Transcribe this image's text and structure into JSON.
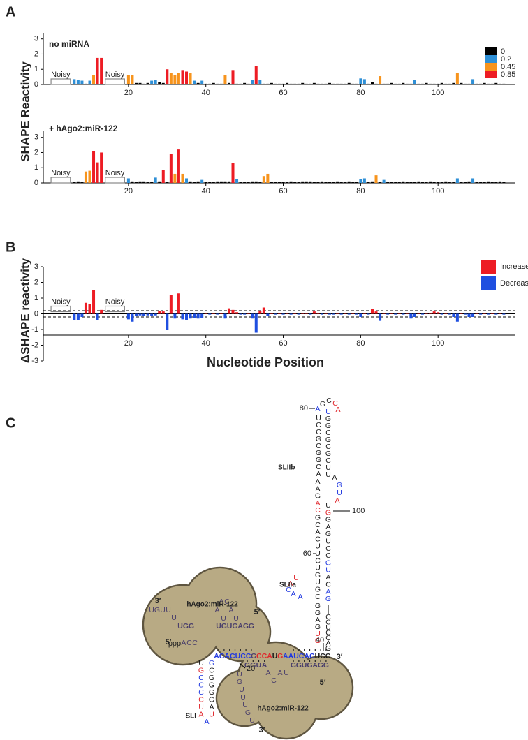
{
  "panel_labels": [
    "A",
    "B",
    "C"
  ],
  "chart_data": [
    {
      "type": "bar",
      "title": "no miRNA",
      "ylabel": "SHAPE Reactivity",
      "xlim": [
        -2,
        120
      ],
      "ylim": [
        0,
        3.4
      ],
      "xticks": [
        20,
        40,
        60,
        80,
        100
      ],
      "yticks": [
        0,
        1,
        2,
        3
      ],
      "x": [
        6,
        7,
        8,
        9,
        10,
        11,
        12,
        13,
        20,
        21,
        22,
        23,
        24,
        25,
        26,
        27,
        28,
        29,
        30,
        31,
        32,
        33,
        34,
        35,
        36,
        37,
        38,
        39,
        40,
        41,
        42,
        43,
        44,
        45,
        46,
        47,
        48,
        49,
        50,
        51,
        52,
        53,
        54,
        55,
        56,
        57,
        58,
        59,
        60,
        61,
        62,
        63,
        64,
        65,
        66,
        67,
        68,
        69,
        70,
        71,
        72,
        73,
        74,
        75,
        76,
        77,
        78,
        79,
        80,
        81,
        82,
        83,
        84,
        85,
        86,
        87,
        88,
        89,
        90,
        91,
        92,
        93,
        94,
        95,
        96,
        97,
        98,
        99,
        100,
        101,
        102,
        103,
        104,
        105,
        106,
        107,
        108,
        109,
        110,
        111,
        112,
        113,
        114,
        115,
        116,
        117
      ],
      "values": [
        0.35,
        0.3,
        0.25,
        0.05,
        0.25,
        0.6,
        1.75,
        1.75,
        0.6,
        0.6,
        0.1,
        0.1,
        0.05,
        0.1,
        0.25,
        0.3,
        0.15,
        0.1,
        1.0,
        0.75,
        0.6,
        0.75,
        0.95,
        0.85,
        0.75,
        0.25,
        0.1,
        0.25,
        0.05,
        0.05,
        0.1,
        0.05,
        0.05,
        0.6,
        0.1,
        0.95,
        0.05,
        0.05,
        0.1,
        0.05,
        0.3,
        1.2,
        0.3,
        0.05,
        0.05,
        0.1,
        0.05,
        0.05,
        0.05,
        0.1,
        0.05,
        0.05,
        0.05,
        0.1,
        0.05,
        0.05,
        0.1,
        0.05,
        0.05,
        0.05,
        0.1,
        0.05,
        0.05,
        0.05,
        0.05,
        0.1,
        0.05,
        0.05,
        0.4,
        0.35,
        0.05,
        0.15,
        0.05,
        0.55,
        0.05,
        0.05,
        0.1,
        0.05,
        0.05,
        0.1,
        0.05,
        0.05,
        0.3,
        0.05,
        0.05,
        0.1,
        0.05,
        0.05,
        0.05,
        0.1,
        0.05,
        0.05,
        0.1,
        0.75,
        0.1,
        0.05,
        0.05,
        0.35,
        0.05,
        0.05,
        0.1,
        0.05,
        0.05,
        0.1,
        0.05,
        0.05
      ],
      "color_scale": [
        {
          "value": 0,
          "color": "#000000"
        },
        {
          "value": 0.2,
          "color": "#2e8fd6"
        },
        {
          "value": 0.45,
          "color": "#f7941d"
        },
        {
          "value": 0.85,
          "color": "#ed1c24"
        }
      ],
      "legend": "top-right",
      "noisy": [
        {
          "label": "Noisy",
          "range": [
            0,
            5
          ]
        },
        {
          "label": "Noisy",
          "range": [
            14,
            19
          ]
        }
      ]
    },
    {
      "type": "bar",
      "title": "+ hAgo2:miR-122",
      "xlim": [
        -2,
        120
      ],
      "ylim": [
        0,
        3.4
      ],
      "xticks": [
        20,
        40,
        60,
        80,
        100
      ],
      "yticks": [
        0,
        1,
        2,
        3
      ],
      "x": [
        6,
        7,
        8,
        9,
        10,
        11,
        12,
        13,
        20,
        21,
        22,
        23,
        24,
        25,
        26,
        27,
        28,
        29,
        30,
        31,
        32,
        33,
        34,
        35,
        36,
        37,
        38,
        39,
        40,
        41,
        42,
        43,
        44,
        45,
        46,
        47,
        48,
        49,
        50,
        51,
        52,
        53,
        54,
        55,
        56,
        57,
        58,
        59,
        60,
        61,
        62,
        63,
        64,
        65,
        66,
        67,
        68,
        69,
        70,
        71,
        72,
        73,
        74,
        75,
        76,
        77,
        78,
        79,
        80,
        81,
        82,
        83,
        84,
        85,
        86,
        87,
        88,
        89,
        90,
        91,
        92,
        93,
        94,
        95,
        96,
        97,
        98,
        99,
        100,
        101,
        102,
        103,
        104,
        105,
        106,
        107,
        108,
        109,
        110,
        111,
        112,
        113,
        114,
        115,
        116,
        117
      ],
      "values": [
        0.05,
        0.1,
        0.05,
        0.75,
        0.8,
        2.1,
        1.35,
        2.0,
        0.3,
        0.1,
        0.05,
        0.1,
        0.1,
        0.05,
        0.05,
        0.35,
        0.1,
        0.85,
        0.05,
        1.9,
        0.6,
        2.2,
        0.6,
        0.3,
        0.1,
        0.05,
        0.1,
        0.2,
        0.05,
        0.05,
        0.05,
        0.1,
        0.1,
        0.1,
        0.1,
        1.3,
        0.25,
        0.05,
        0.05,
        0.05,
        0.1,
        0.1,
        0.05,
        0.45,
        0.6,
        0.05,
        0.05,
        0.05,
        0.05,
        0.05,
        0.1,
        0.05,
        0.05,
        0.1,
        0.1,
        0.1,
        0.05,
        0.05,
        0.1,
        0.05,
        0.05,
        0.05,
        0.1,
        0.05,
        0.05,
        0.1,
        0.05,
        0.05,
        0.25,
        0.3,
        0.05,
        0.1,
        0.5,
        0.05,
        0.2,
        0.05,
        0.05,
        0.05,
        0.05,
        0.1,
        0.05,
        0.05,
        0.05,
        0.1,
        0.05,
        0.05,
        0.1,
        0.05,
        0.05,
        0.05,
        0.1,
        0.05,
        0.05,
        0.3,
        0.05,
        0.05,
        0.1,
        0.3,
        0.05,
        0.05,
        0.05,
        0.1,
        0.05,
        0.05,
        0.1,
        0.05
      ],
      "color_scale": [
        {
          "value": 0,
          "color": "#000000"
        },
        {
          "value": 0.2,
          "color": "#2e8fd6"
        },
        {
          "value": 0.45,
          "color": "#f7941d"
        },
        {
          "value": 0.85,
          "color": "#ed1c24"
        }
      ],
      "noisy": [
        {
          "label": "Noisy",
          "range": [
            0,
            5
          ]
        },
        {
          "label": "Noisy",
          "range": [
            14,
            19
          ]
        }
      ]
    },
    {
      "type": "bar",
      "ylabel": "ΔSHAPE reactivity",
      "xlabel": "Nucleotide Position",
      "xlim": [
        -2,
        120
      ],
      "ylim": [
        -3,
        3
      ],
      "xticks": [
        20,
        40,
        60,
        80,
        100
      ],
      "yticks": [
        -3,
        -2,
        -1,
        0,
        1,
        2,
        3
      ],
      "x": [
        6,
        7,
        8,
        9,
        10,
        11,
        12,
        13,
        20,
        21,
        22,
        23,
        24,
        25,
        26,
        27,
        28,
        29,
        30,
        31,
        32,
        33,
        34,
        35,
        36,
        37,
        38,
        39,
        40,
        41,
        42,
        43,
        44,
        45,
        46,
        47,
        48,
        49,
        50,
        51,
        52,
        53,
        54,
        55,
        56,
        57,
        58,
        59,
        60,
        61,
        62,
        63,
        64,
        65,
        66,
        67,
        68,
        69,
        70,
        71,
        72,
        73,
        74,
        75,
        76,
        77,
        78,
        79,
        80,
        81,
        82,
        83,
        84,
        85,
        86,
        87,
        88,
        89,
        90,
        91,
        92,
        93,
        94,
        95,
        96,
        97,
        98,
        99,
        100,
        101,
        102,
        103,
        104,
        105,
        106,
        107,
        108,
        109,
        110,
        111,
        112,
        113,
        114,
        115,
        116,
        117
      ],
      "values": [
        -0.4,
        -0.4,
        -0.2,
        0.7,
        0.6,
        1.5,
        -0.4,
        0.25,
        -0.35,
        -0.5,
        -0.15,
        -0.1,
        -0.15,
        -0.1,
        -0.15,
        -0.1,
        0.2,
        0.15,
        -1.0,
        1.2,
        -0.3,
        1.3,
        -0.35,
        -0.4,
        -0.3,
        -0.25,
        -0.3,
        -0.25,
        0.05,
        -0.05,
        0.05,
        -0.05,
        0.05,
        -0.3,
        0.35,
        0.25,
        0.1,
        -0.05,
        -0.05,
        0.05,
        -0.3,
        -1.2,
        0.2,
        0.4,
        -0.15,
        0.05,
        -0.05,
        0.05,
        -0.05,
        0.05,
        -0.05,
        0.05,
        -0.05,
        0.05,
        0.05,
        -0.05,
        0.15,
        0.05,
        -0.05,
        0.05,
        -0.05,
        -0.05,
        0.05,
        -0.05,
        0.05,
        -0.05,
        0.05,
        -0.05,
        -0.2,
        0.05,
        -0.05,
        0.3,
        0.15,
        -0.45,
        0.05,
        -0.05,
        0.05,
        -0.05,
        0.05,
        -0.05,
        0.05,
        -0.3,
        -0.2,
        0.05,
        -0.05,
        0.05,
        0.05,
        0.15,
        0.1,
        -0.05,
        0.05,
        -0.05,
        -0.2,
        -0.5,
        0.05,
        -0.05,
        -0.2,
        -0.2,
        0.05,
        -0.05,
        0.05,
        -0.05,
        0.05,
        -0.05,
        0.05,
        -0.05
      ],
      "legend_items": [
        {
          "name": "Increase",
          "color": "#ed1c24"
        },
        {
          "name": "Decrease",
          "color": "#1f4fe0"
        }
      ],
      "legend": "top-right",
      "thresholds": [
        -0.2,
        0.2
      ],
      "noisy": [
        {
          "label": "Noisy",
          "range": [
            0,
            5
          ]
        },
        {
          "label": "Noisy",
          "range": [
            14,
            19
          ]
        }
      ]
    }
  ],
  "diagram": {
    "labels": {
      "stem_b": "SLIIb",
      "stem_a": "SLIIa",
      "stem_1": "SLI",
      "complex": [
        "hAgo2:miR-122",
        "hAgo2:miR-122"
      ],
      "ends": [
        "3′",
        "5′",
        "5′",
        "3′",
        "5′",
        "3′"
      ],
      "triphosphate": "ppp"
    },
    "position_numbers": [
      80,
      100,
      60,
      40,
      20
    ],
    "palette": {
      "k": "#1a1a1a",
      "r": "#e0262b",
      "b": "#2038e0",
      "p": "#4a3f6b"
    },
    "strands": [
      {
        "seq": "AGCCA",
        "tone": "bkkrr"
      },
      {
        "seq": "UCCGCGGCA",
        "tone": "kkkkkkkkk"
      },
      {
        "seq": "AAGACGCACUUCUGUGC",
        "tone": "kkkrrkkkkkkkkkkkk"
      },
      {
        "seq": "UACAA",
        "tone": "rrbbb"
      },
      {
        "seq": "GGAGUG",
        "tone": "kkkkrr"
      },
      {
        "seq": "UGGCGCGCUU",
        "tone": "bkkkkkkkkk"
      },
      {
        "seq": "AGUA",
        "tone": "kbbr"
      },
      {
        "seq": "UGGAGUCCGUACAG",
        "tone": "krkkkkkkbbkkbb"
      },
      {
        "seq": "CCUCCAG",
        "tone": "kkkkkkk"
      },
      {
        "seq": "ACACUCCGCCAUGAAUCACUCC",
        "tone": "bbbbbbbprrrkrbbbbbbkkk"
      },
      {
        "seq": "ACC",
        "tone": "ppp"
      },
      {
        "seq": "UGCCCCUA",
        "tone": "krbbbrrr"
      },
      {
        "seq": "GCGGGGAU",
        "tone": "bkkkkkkr"
      },
      {
        "seq": "A",
        "tone": "b"
      },
      {
        "seq": "UGUU",
        "tone": "pppp"
      },
      {
        "seq": "U",
        "tone": "p"
      },
      {
        "seq": "UGG",
        "tone": "ppp"
      },
      {
        "seq": "AC",
        "tone": "pp"
      },
      {
        "seq": "AA",
        "tone": "pp"
      },
      {
        "seq": "UU",
        "tone": "pp"
      },
      {
        "seq": "UGUGAGG",
        "tone": "ppppppp"
      },
      {
        "seq": "GGUA",
        "tone": "pppp"
      },
      {
        "seq": "UGUUUGU",
        "tone": "ppppppp"
      },
      {
        "seq": "ACAU",
        "tone": "pppp"
      },
      {
        "seq": "GGUGAGG",
        "tone": "ppppppp"
      }
    ]
  }
}
